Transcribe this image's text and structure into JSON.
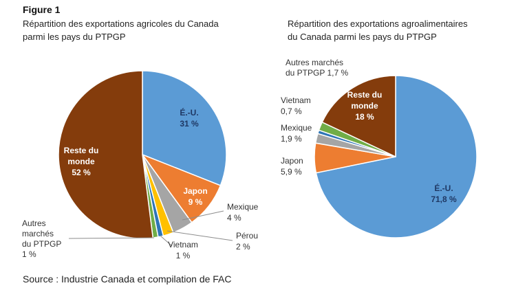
{
  "figure_label": "Figure 1",
  "source": "Source : Industrie Canada et compilation de FAC",
  "colors": {
    "usa": "#5b9bd5",
    "japan": "#ed7d31",
    "mexico": "#a5a5a5",
    "peru": "#ffc000",
    "vietnam": "#2e75b6",
    "other_cptpp": "#70ad47",
    "rest": "#843c0c"
  },
  "chart_data": [
    {
      "type": "pie",
      "title": "Répartition des exportations agricoles du Canada parmi les pays du PTPGP",
      "title_lines": [
        "Répartition des exportations agricoles du Canada",
        "parmi les pays du PTPGP"
      ],
      "slices": [
        {
          "name": "É.-U.",
          "value": 31,
          "pct_label": "31 %",
          "color_key": "usa"
        },
        {
          "name": "Japon",
          "value": 9,
          "pct_label": "9 %",
          "color_key": "japan"
        },
        {
          "name": "Mexique",
          "value": 4,
          "pct_label": "4 %",
          "color_key": "mexico"
        },
        {
          "name": "Pérou",
          "value": 2,
          "pct_label": "2 %",
          "color_key": "peru"
        },
        {
          "name": "Vietnam",
          "value": 1,
          "pct_label": "1 %",
          "color_key": "vietnam"
        },
        {
          "name": "Autres marchés du PTPGP",
          "value": 1,
          "pct_label": "1 %",
          "color_key": "other_cptpp",
          "label_lines": [
            "Autres",
            "marchés",
            "du PTPGP"
          ]
        },
        {
          "name": "Reste du monde",
          "value": 52,
          "pct_label": "52 %",
          "color_key": "rest",
          "label_lines": [
            "Reste du",
            "monde"
          ]
        }
      ]
    },
    {
      "type": "pie",
      "title": "Répartition des exportations agroalimentaires du Canada parmi les pays du PTPGP",
      "title_lines": [
        "Répartition des exportations agroalimentaires",
        "du Canada parmi les pays du PTPGP"
      ],
      "slices": [
        {
          "name": "É.-U.",
          "value": 71.8,
          "pct_label": "71,8 %",
          "color_key": "usa"
        },
        {
          "name": "Japon",
          "value": 5.9,
          "pct_label": "5,9 %",
          "color_key": "japan"
        },
        {
          "name": "Mexique",
          "value": 1.9,
          "pct_label": "1,9 %",
          "color_key": "mexico"
        },
        {
          "name": "Vietnam",
          "value": 0.7,
          "pct_label": "0,7 %",
          "color_key": "vietnam"
        },
        {
          "name": "Autres marchés du PTPGP",
          "value": 1.7,
          "pct_label": "1,7 %",
          "color_key": "other_cptpp",
          "label_lines": [
            "Autres marchés",
            "du PTPGP 1,7 %"
          ]
        },
        {
          "name": "Reste du monde",
          "value": 18,
          "pct_label": "18 %",
          "color_key": "rest",
          "label_lines": [
            "Reste du",
            "monde"
          ]
        }
      ]
    }
  ]
}
